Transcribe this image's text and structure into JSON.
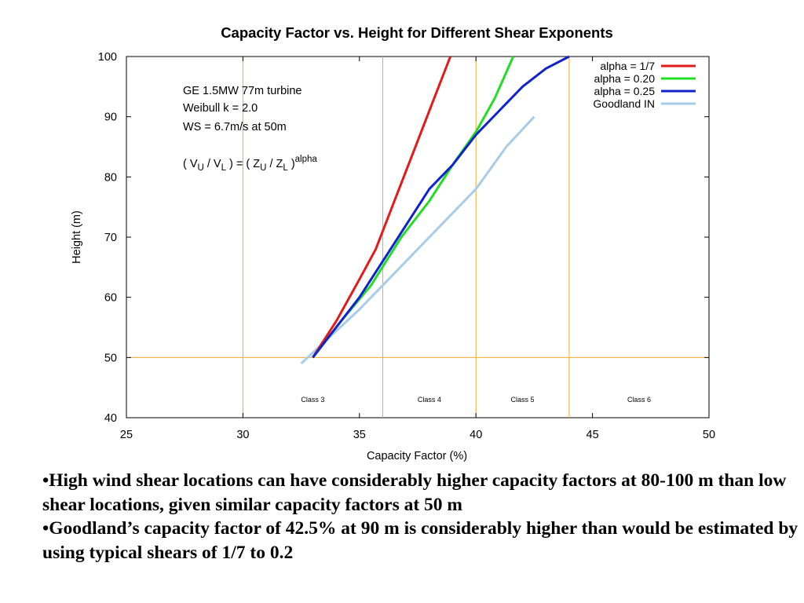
{
  "chart_data": {
    "type": "line",
    "title": "Capacity Factor vs. Height for Different Shear Exponents",
    "xlabel": "Capacity Factor (%)",
    "ylabel": "Height (m)",
    "xlim": [
      25,
      50
    ],
    "ylim": [
      40,
      100
    ],
    "xticks": [
      25,
      30,
      35,
      40,
      45,
      50
    ],
    "yticks": [
      40,
      50,
      60,
      70,
      80,
      90,
      100
    ],
    "grid": false,
    "legend_position": "top-right",
    "reference_lines": {
      "vertical_x": [
        30,
        36,
        40,
        44
      ],
      "horizontal_y": [
        50
      ],
      "color": "#f0a830"
    },
    "annotations": [
      "GE 1.5MW 77m turbine",
      "Weibull k = 2.0",
      "WS = 6.7m/s at 50m"
    ],
    "formula": {
      "lhs_open": "( V",
      "lhs_sub1": "U",
      "lhs_mid": " / V",
      "lhs_sub2": "L",
      "lhs_close": " ) = ( Z",
      "rhs_sub1": "U",
      "rhs_mid": " / Z",
      "rhs_sub2": "L",
      "rhs_close": " )",
      "sup": "alpha"
    },
    "class_labels": [
      {
        "text": "Class 3",
        "x": 33.0,
        "y": 43
      },
      {
        "text": "Class 4",
        "x": 38.0,
        "y": 43
      },
      {
        "text": "Class 5",
        "x": 42.0,
        "y": 43
      },
      {
        "text": "Class 6",
        "x": 47.0,
        "y": 43
      }
    ],
    "series": [
      {
        "name": "alpha = 1/7",
        "color": "#e41a1a",
        "points": [
          [
            33.0,
            50
          ],
          [
            34.0,
            56
          ],
          [
            35.0,
            63
          ],
          [
            35.7,
            68
          ],
          [
            36.5,
            76
          ],
          [
            37.3,
            84
          ],
          [
            38.1,
            92
          ],
          [
            38.9,
            100
          ]
        ]
      },
      {
        "name": "alpha = 0.20",
        "color": "#22dd22",
        "points": [
          [
            33.0,
            50
          ],
          [
            34.2,
            56
          ],
          [
            35.5,
            62
          ],
          [
            36.8,
            70
          ],
          [
            38.0,
            76
          ],
          [
            39.0,
            82
          ],
          [
            40.0,
            87.5
          ],
          [
            40.8,
            93
          ],
          [
            41.6,
            100
          ]
        ]
      },
      {
        "name": "alpha = 0.25",
        "color": "#1022cc",
        "points": [
          [
            33.0,
            50
          ],
          [
            34.0,
            55
          ],
          [
            35.0,
            60
          ],
          [
            36.0,
            66
          ],
          [
            37.0,
            72
          ],
          [
            38.0,
            78
          ],
          [
            39.0,
            82
          ],
          [
            40.0,
            87
          ],
          [
            41.0,
            91
          ],
          [
            42.0,
            95
          ],
          [
            43.0,
            98
          ],
          [
            44.0,
            100
          ]
        ]
      },
      {
        "name": "Goodland IN",
        "color": "#a8cce8",
        "points": [
          [
            32.5,
            49
          ],
          [
            35.0,
            58
          ],
          [
            37.0,
            66
          ],
          [
            38.5,
            72
          ],
          [
            40.0,
            78
          ],
          [
            41.3,
            85
          ],
          [
            42.5,
            90
          ]
        ]
      }
    ]
  },
  "bullets": [
    "•High wind shear locations can have considerably higher capacity factors at 80-100 m than low shear locations, given similar capacity factors at 50 m",
    "•Goodland’s capacity factor of 42.5% at 90 m is considerably higher than would be estimated by using typical shears of 1/7 to 0.2"
  ]
}
